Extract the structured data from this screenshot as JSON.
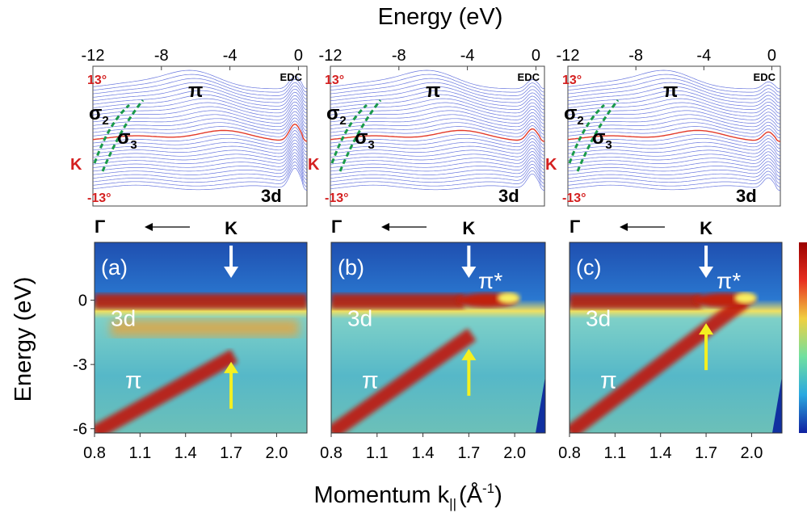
{
  "figure": {
    "top_axis_title": "Energy (eV)",
    "bottom_axis_title": "Momentum k",
    "bottom_axis_subscript": "||",
    "bottom_axis_unit_open": " (Å",
    "bottom_axis_unit_exp": "-1",
    "bottom_axis_unit_close": ")",
    "left_axis_title": "Energy (eV)",
    "direction_gamma": "Γ",
    "direction_k": "K"
  },
  "chart_data": [
    {
      "type": "line",
      "panel": "EDC top-left",
      "x_ticks": [
        "-12",
        "-8",
        "-4",
        "0"
      ],
      "xlim": [
        -12,
        0.5
      ],
      "angle_top": "13°",
      "angle_bottom": "-13°",
      "k_label": "K",
      "edc_label": "EDC",
      "pi_label": "π",
      "sigma2_label": "σ",
      "sigma2_sub": "2",
      "sigma3_label": "σ",
      "sigma3_sub": "3",
      "d_label": "3d",
      "n_curves": 30,
      "k_curve_index": 15,
      "colors": {
        "curves": "#4f5fd8",
        "k_curve": "#e23a2a",
        "sigma_dash": "#1a9a4a",
        "angle_text": "#d42020"
      }
    },
    {
      "type": "line",
      "panel": "EDC top-middle",
      "x_ticks": [
        "-12",
        "-8",
        "-4",
        "0"
      ],
      "xlim": [
        -12,
        0.5
      ],
      "angle_top": "13°",
      "angle_bottom": "-13°",
      "k_label": "K",
      "edc_label": "EDC",
      "pi_label": "π",
      "sigma2_label": "σ",
      "sigma2_sub": "2",
      "sigma3_label": "σ",
      "sigma3_sub": "3",
      "d_label": "3d",
      "n_curves": 30,
      "k_curve_index": 15
    },
    {
      "type": "line",
      "panel": "EDC top-right",
      "x_ticks": [
        "-12",
        "-8",
        "-4",
        "0"
      ],
      "xlim": [
        -12,
        0.5
      ],
      "angle_top": "13°",
      "angle_bottom": "-13°",
      "k_label": "K",
      "edc_label": "EDC",
      "pi_label": "π",
      "sigma2_label": "σ",
      "sigma2_sub": "2",
      "sigma3_label": "σ",
      "sigma3_sub": "3",
      "d_label": "3d",
      "n_curves": 30,
      "k_curve_index": 15
    },
    {
      "type": "heatmap",
      "panel": "(a)",
      "label": "(a)",
      "x_ticks": [
        "0.8",
        "1.1",
        "1.4",
        "1.7",
        "2.0"
      ],
      "y_ticks": [
        "0",
        "-3",
        "-6"
      ],
      "xlim": [
        0.8,
        2.2
      ],
      "ylim": [
        -6.2,
        2.7
      ],
      "band_labels": {
        "d": "3d",
        "pi": "π",
        "pistar": ""
      },
      "k_point": 1.7,
      "yellow_arrow_energy": -2.8
    },
    {
      "type": "heatmap",
      "panel": "(b)",
      "label": "(b)",
      "x_ticks": [
        "0.8",
        "1.1",
        "1.4",
        "1.7",
        "2.0"
      ],
      "y_ticks": [],
      "xlim": [
        0.8,
        2.2
      ],
      "ylim": [
        -6.2,
        2.7
      ],
      "band_labels": {
        "d": "3d",
        "pi": "π",
        "pistar": "π*"
      },
      "k_point": 1.7,
      "yellow_arrow_energy": -2.2
    },
    {
      "type": "heatmap",
      "panel": "(c)",
      "label": "(c)",
      "x_ticks": [
        "0.8",
        "1.1",
        "1.4",
        "1.7",
        "2.0"
      ],
      "y_ticks": [],
      "xlim": [
        0.8,
        2.2
      ],
      "ylim": [
        -6.2,
        2.7
      ],
      "band_labels": {
        "d": "3d",
        "pi": "π",
        "pistar": "π*"
      },
      "k_point": 1.7,
      "yellow_arrow_energy": -1.0
    }
  ]
}
